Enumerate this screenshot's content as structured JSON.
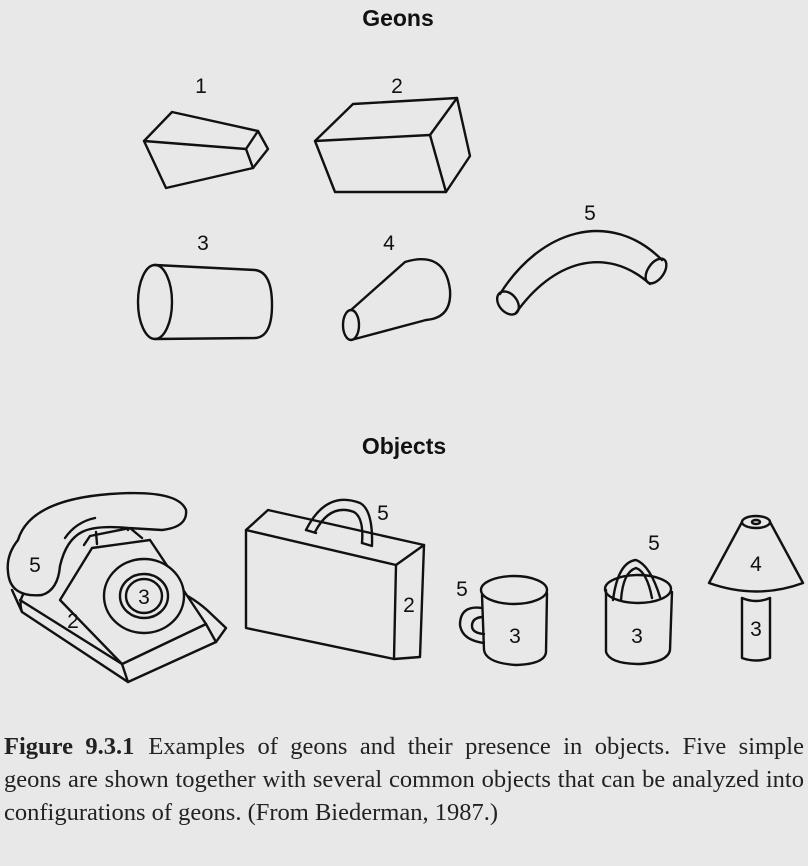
{
  "geons_section": {
    "title": "Geons",
    "labels": [
      "1",
      "2",
      "3",
      "4",
      "5"
    ]
  },
  "objects_section": {
    "title": "Objects",
    "telephone": {
      "handset": "5",
      "body": "2",
      "dial": "3"
    },
    "suitcase": {
      "handle": "5",
      "body": "2"
    },
    "cup": {
      "handle": "5",
      "body": "3"
    },
    "pail": {
      "handle": "5",
      "body": "3"
    },
    "lamp": {
      "shade": "4",
      "base": "3"
    }
  },
  "caption": {
    "label": "Figure 9.3.1",
    "text": "Examples of geons and their presence in objects. Five simple geons are shown together with several common objects that can be analyzed into configurations of geons. (From Biederman, 1987.)"
  }
}
